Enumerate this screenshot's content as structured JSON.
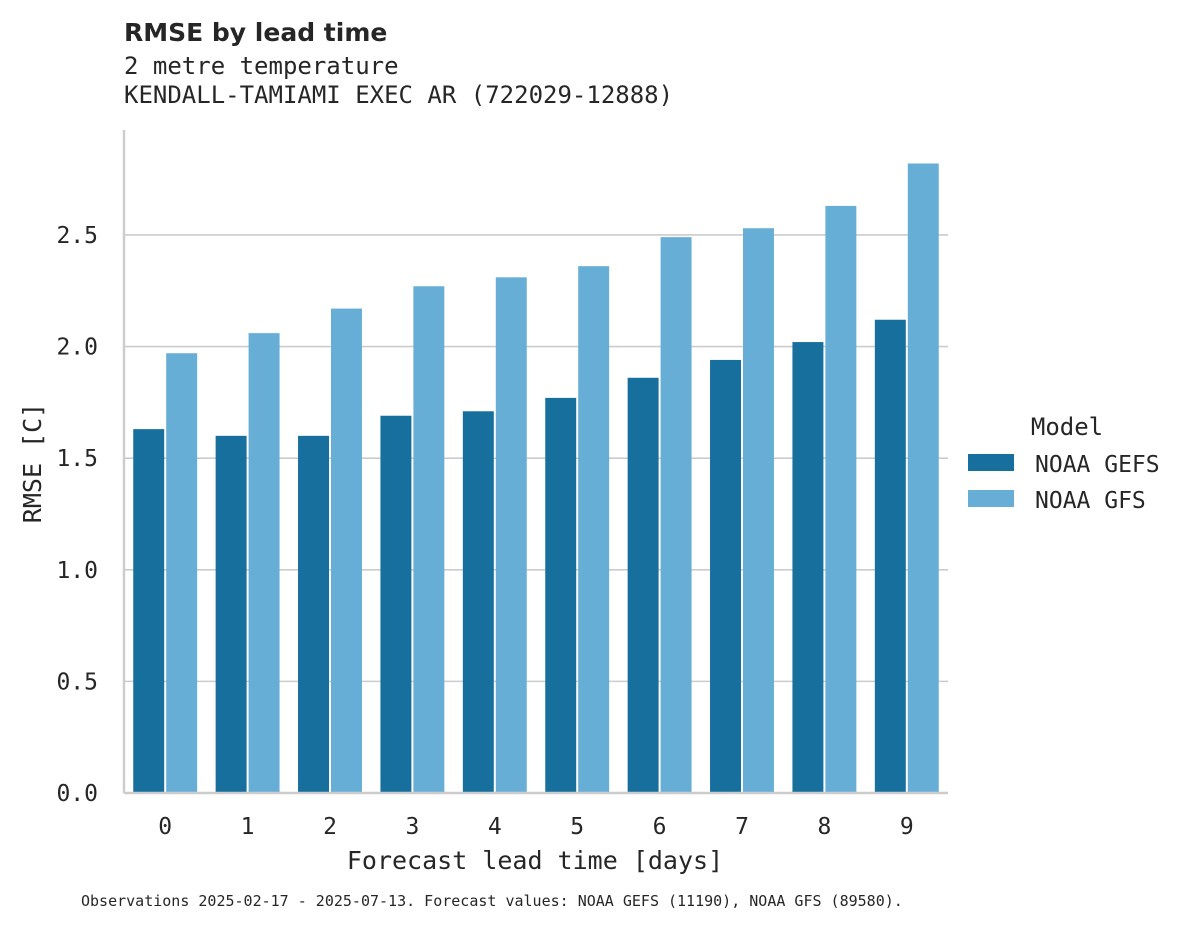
{
  "chart_data": {
    "type": "bar",
    "title": "RMSE by lead time",
    "subtitle_lines": [
      "2 metre temperature",
      "KENDALL-TAMIAMI EXEC AR (722029-12888)"
    ],
    "xlabel": "Forecast lead time [days]",
    "ylabel": "RMSE [C]",
    "categories": [
      "0",
      "1",
      "2",
      "3",
      "4",
      "5",
      "6",
      "7",
      "8",
      "9"
    ],
    "ylim": [
      0,
      2.97
    ],
    "yticks": [
      "0.0",
      "0.5",
      "1.0",
      "1.5",
      "2.0",
      "2.5"
    ],
    "grid": "horizontal",
    "legend": {
      "title": "Model",
      "placement": "right"
    },
    "series": [
      {
        "name": "NOAA GEFS",
        "color": "#176f9e",
        "values": [
          1.63,
          1.6,
          1.6,
          1.69,
          1.71,
          1.77,
          1.86,
          1.94,
          2.02,
          2.12
        ]
      },
      {
        "name": "NOAA GFS",
        "color": "#66aed6",
        "values": [
          1.97,
          2.06,
          2.17,
          2.27,
          2.31,
          2.36,
          2.49,
          2.53,
          2.63,
          2.82
        ]
      }
    ],
    "footnote": "Observations 2025-02-17 - 2025-07-13. Forecast values: NOAA GEFS (11190), NOAA GFS (89580)."
  }
}
